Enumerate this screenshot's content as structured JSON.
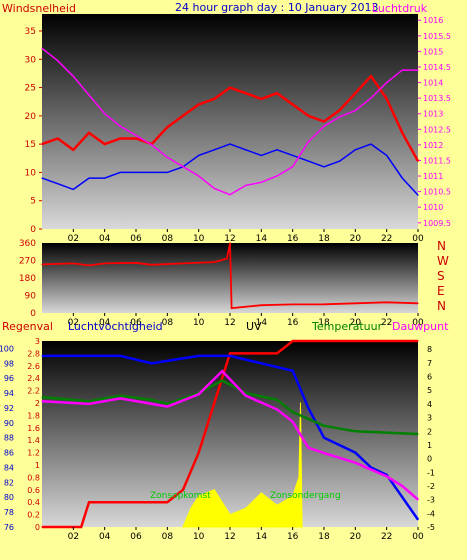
{
  "header": {
    "left_label": "Windsnelheid",
    "title": "24 hour graph day : 10 January 2013",
    "right_label": "Luchtdruk"
  },
  "colors": {
    "background": "#ffff99",
    "wind": "#ff0000",
    "gust": "#0000ff",
    "pressure": "#ff00ff",
    "direction": "#ff0000",
    "rain": "#ff0000",
    "humidity": "#0000ff",
    "temperature": "#008000",
    "dewpoint": "#ff00ff",
    "uv": "#ffff00",
    "label_blue": "#0000cc",
    "label_red": "#cc0000",
    "label_green": "#008000",
    "label_magenta": "#ff00ff"
  },
  "lower_header": {
    "rain": "Regenval",
    "humidity": "Luchtvochtigheid",
    "uv": "UV",
    "temperature": "Temperatuur",
    "dewpoint": "Dauwpunt"
  },
  "uv_labels": {
    "sunrise": "Zonsopkomst",
    "sunset": "Zonsondergang"
  },
  "chart_data": [
    {
      "type": "line",
      "name": "wind",
      "x_ticks": [
        "02",
        "04",
        "06",
        "08",
        "10",
        "12",
        "14",
        "16",
        "18",
        "20",
        "22",
        "00"
      ],
      "left_axis": {
        "label": "Windsnelheid",
        "ticks": [
          0,
          5,
          10,
          15,
          20,
          25,
          30,
          35
        ],
        "range": [
          0,
          38
        ]
      },
      "right_axis": {
        "label": "Luchtdruk",
        "ticks": [
          1009.5,
          1010,
          1010.5,
          1011,
          1011.5,
          1012,
          1012.5,
          1013,
          1013.5,
          1014,
          1014.5,
          1015,
          1015.5,
          1016
        ],
        "range": [
          1009.3,
          1016.2
        ]
      },
      "series": [
        {
          "color": "#ff0000",
          "points": [
            [
              0,
              15
            ],
            [
              1,
              16
            ],
            [
              2,
              14
            ],
            [
              3,
              17
            ],
            [
              4,
              15
            ],
            [
              5,
              16
            ],
            [
              6,
              16
            ],
            [
              7,
              15
            ],
            [
              8,
              18
            ],
            [
              9,
              20
            ],
            [
              10,
              22
            ],
            [
              11,
              23
            ],
            [
              12,
              25
            ],
            [
              13,
              24
            ],
            [
              14,
              23
            ],
            [
              15,
              24
            ],
            [
              16,
              22
            ],
            [
              17,
              20
            ],
            [
              18,
              19
            ],
            [
              19,
              21
            ],
            [
              20,
              24
            ],
            [
              21,
              27
            ],
            [
              22,
              23
            ],
            [
              23,
              17
            ],
            [
              24,
              12
            ]
          ]
        },
        {
          "color": "#0000ff",
          "points": [
            [
              0,
              9
            ],
            [
              1,
              8
            ],
            [
              2,
              7
            ],
            [
              3,
              9
            ],
            [
              4,
              9
            ],
            [
              5,
              10
            ],
            [
              6,
              10
            ],
            [
              7,
              10
            ],
            [
              8,
              10
            ],
            [
              9,
              11
            ],
            [
              10,
              13
            ],
            [
              11,
              14
            ],
            [
              12,
              15
            ],
            [
              13,
              14
            ],
            [
              14,
              13
            ],
            [
              15,
              14
            ],
            [
              16,
              13
            ],
            [
              17,
              12
            ],
            [
              18,
              11
            ],
            [
              19,
              12
            ],
            [
              20,
              14
            ],
            [
              21,
              15
            ],
            [
              22,
              13
            ],
            [
              23,
              9
            ],
            [
              24,
              6
            ]
          ]
        },
        {
          "color": "#ff00ff",
          "axis": "right",
          "points": [
            [
              0,
              1015.1
            ],
            [
              1,
              1014.7
            ],
            [
              2,
              1014.2
            ],
            [
              3,
              1013.6
            ],
            [
              4,
              1013.0
            ],
            [
              5,
              1012.6
            ],
            [
              6,
              1012.3
            ],
            [
              7,
              1012.0
            ],
            [
              8,
              1011.6
            ],
            [
              9,
              1011.3
            ],
            [
              10,
              1011.0
            ],
            [
              11,
              1010.6
            ],
            [
              12,
              1010.4
            ],
            [
              13,
              1010.7
            ],
            [
              14,
              1010.8
            ],
            [
              15,
              1011.0
            ],
            [
              16,
              1011.3
            ],
            [
              17,
              1012.1
            ],
            [
              18,
              1012.6
            ],
            [
              19,
              1012.9
            ],
            [
              20,
              1013.1
            ],
            [
              21,
              1013.5
            ],
            [
              22,
              1014.0
            ],
            [
              23,
              1014.4
            ],
            [
              24,
              1014.4
            ]
          ]
        }
      ]
    },
    {
      "type": "line",
      "name": "direction",
      "x_ticks": [
        "02",
        "04",
        "06",
        "08",
        "10",
        "12",
        "14",
        "16",
        "18",
        "20",
        "22",
        "00"
      ],
      "left_axis": {
        "ticks": [
          0,
          90,
          180,
          270,
          360
        ],
        "range": [
          0,
          360
        ]
      },
      "right_labels": [
        "N",
        "W",
        "S",
        "E",
        "N"
      ],
      "series": [
        {
          "color": "#ff0000",
          "points": [
            [
              0,
              250
            ],
            [
              2,
              255
            ],
            [
              3,
              245
            ],
            [
              4,
              255
            ],
            [
              6,
              258
            ],
            [
              7,
              248
            ],
            [
              9,
              255
            ],
            [
              11,
              262
            ],
            [
              11.8,
              280
            ],
            [
              12,
              360
            ],
            [
              12.1,
              25
            ],
            [
              14,
              40
            ],
            [
              16,
              44
            ],
            [
              18,
              45
            ],
            [
              20,
              50
            ],
            [
              22,
              55
            ],
            [
              24,
              50
            ]
          ]
        }
      ]
    },
    {
      "type": "line",
      "name": "climate",
      "x_ticks": [
        "02",
        "04",
        "06",
        "08",
        "10",
        "12",
        "14",
        "16",
        "18",
        "20",
        "22",
        "00"
      ],
      "axes": {
        "rain": {
          "ticks": [
            0,
            0.2,
            0.4,
            0.6,
            0.8,
            1,
            1.2,
            1.4,
            1.6,
            1.8,
            2,
            2.2,
            2.4,
            2.6,
            2.8,
            3
          ],
          "range": [
            0,
            3
          ]
        },
        "humidity": {
          "ticks": [
            76,
            78,
            80,
            82,
            84,
            86,
            88,
            90,
            92,
            94,
            96,
            98,
            100
          ],
          "range": [
            76,
            101
          ]
        },
        "temperature": {
          "ticks": [
            -5,
            -4,
            -3,
            -2,
            -1,
            0,
            1,
            2,
            3,
            4,
            5,
            6,
            7,
            8
          ],
          "range": [
            -5,
            8.6
          ]
        }
      },
      "series": [
        {
          "name": "Regenval",
          "color": "#ff0000",
          "axis": "rain",
          "points": [
            [
              0,
              0
            ],
            [
              2.5,
              0
            ],
            [
              3,
              0.4
            ],
            [
              8,
              0.4
            ],
            [
              9,
              0.6
            ],
            [
              10,
              1.2
            ],
            [
              11,
              2.0
            ],
            [
              12,
              2.8
            ],
            [
              15,
              2.8
            ],
            [
              16,
              3
            ],
            [
              24,
              3
            ]
          ]
        },
        {
          "name": "Luchtvochtigheid",
          "color": "#0000ff",
          "axis": "humidity",
          "points": [
            [
              0,
              99
            ],
            [
              5,
              99
            ],
            [
              7,
              98
            ],
            [
              10,
              99
            ],
            [
              12,
              99
            ],
            [
              14,
              98
            ],
            [
              16,
              97
            ],
            [
              17,
              92
            ],
            [
              18,
              88
            ],
            [
              20,
              86
            ],
            [
              21,
              84
            ],
            [
              22,
              83
            ],
            [
              23,
              80
            ],
            [
              24,
              77
            ]
          ]
        },
        {
          "name": "Temperatuur",
          "color": "#008000",
          "axis": "temperature",
          "points": [
            [
              0,
              4.5
            ],
            [
              3,
              4.2
            ],
            [
              5,
              4.6
            ],
            [
              7,
              4.3
            ],
            [
              8,
              4.0
            ],
            [
              10,
              4.8
            ],
            [
              11.5,
              5.7
            ],
            [
              13,
              4.8
            ],
            [
              15,
              4.3
            ],
            [
              16,
              3.4
            ],
            [
              18,
              2.4
            ],
            [
              20,
              2.0
            ],
            [
              22,
              1.9
            ],
            [
              24,
              1.8
            ]
          ]
        },
        {
          "name": "Dauwpunt",
          "color": "#ff00ff",
          "axis": "temperature",
          "points": [
            [
              0,
              4.2
            ],
            [
              3,
              4.0
            ],
            [
              5,
              4.4
            ],
            [
              7,
              4.0
            ],
            [
              8,
              3.8
            ],
            [
              10,
              4.7
            ],
            [
              11.5,
              6.4
            ],
            [
              13,
              4.6
            ],
            [
              15,
              3.6
            ],
            [
              16,
              2.7
            ],
            [
              17,
              0.8
            ],
            [
              18,
              0.4
            ],
            [
              20,
              -0.3
            ],
            [
              22,
              -1.3
            ],
            [
              23,
              -2.0
            ],
            [
              24,
              -3.0
            ]
          ]
        }
      ],
      "uv": {
        "color": "#ffff00",
        "points": [
          [
            9,
            0
          ],
          [
            9.5,
            0.3
          ],
          [
            10,
            0.5
          ],
          [
            11,
            0.6
          ],
          [
            12,
            0.2
          ],
          [
            13,
            0.3
          ],
          [
            14,
            0.55
          ],
          [
            15,
            0.35
          ],
          [
            16,
            0.5
          ],
          [
            16.4,
            0.8
          ],
          [
            16.5,
            2.0
          ],
          [
            16.6,
            0
          ]
        ]
      }
    }
  ]
}
